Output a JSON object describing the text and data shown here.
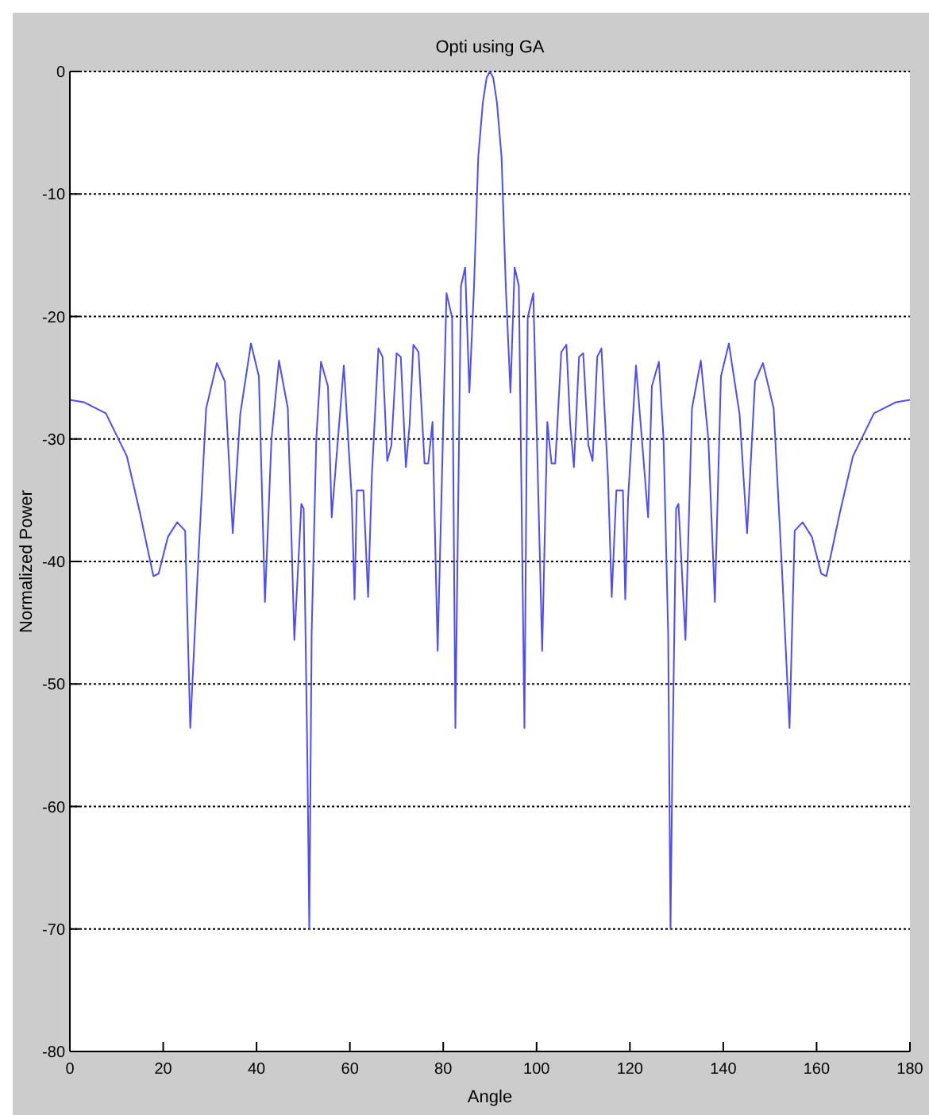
{
  "chart_data": {
    "type": "line",
    "title": "Opti using GA",
    "xlabel": "Angle",
    "ylabel": "Normalized Power",
    "xlim": [
      0,
      180
    ],
    "xticks": [
      0,
      20,
      40,
      60,
      80,
      100,
      120,
      140,
      160,
      180
    ],
    "ylim": [
      -80,
      0
    ],
    "yticks": [
      -80,
      -70,
      -60,
      -50,
      -40,
      -30,
      -20,
      -10,
      0
    ],
    "grid": "y",
    "marker": "none",
    "line_style": "solid",
    "series": [
      {
        "color": "#4d4dff",
        "x": [
          0,
          3,
          7.7,
          12.2,
          15,
          17.9,
          19,
          21,
          23,
          24.7,
          25.8,
          27.5,
          29.2,
          31.5,
          33.2,
          34.9,
          36.5,
          38.8,
          40.5,
          41.8,
          43.2,
          44.8,
          46.7,
          48.1,
          49.6,
          50.1,
          50.9,
          51.3,
          51.8,
          52.8,
          53.8,
          55.3,
          56.1,
          58.7,
          60.4,
          61,
          61.5,
          62.9,
          63.9,
          64.7,
          66.1,
          67,
          68,
          68.9,
          70,
          70.9,
          72,
          72.8,
          73.6,
          74.7,
          76,
          76.8,
          77.7,
          78.8,
          80.7,
          81.9,
          82.6,
          83.8,
          84.7,
          85.6,
          86.6,
          87.5,
          88.5,
          89.3,
          90,
          90.7,
          91.5,
          92.5,
          93.4,
          94.4,
          95.3,
          96.2,
          97.4,
          98.1,
          99.3,
          101.2,
          102.3,
          103.2,
          104,
          105.3,
          106.4,
          107.2,
          108,
          109.1,
          110,
          111.1,
          112,
          113,
          113.9,
          115.3,
          116.1,
          117.1,
          118.5,
          119,
          119.6,
          121.3,
          123.9,
          124.7,
          126.2,
          127.2,
          128.2,
          128.7,
          129.1,
          129.9,
          130.4,
          131.9,
          133.3,
          135.2,
          136.8,
          138.2,
          139.5,
          141.2,
          143.5,
          145.1,
          146.8,
          148.5,
          150.8,
          152.5,
          154.2,
          155.3,
          157,
          159,
          161,
          162.1,
          165,
          167.8,
          172.3,
          177,
          180
        ],
        "values": [
          -26.8,
          -27,
          -27.9,
          -31.4,
          -36,
          -41.2,
          -41,
          -38,
          -36.8,
          -37.5,
          -53.6,
          -40,
          -27.5,
          -23.8,
          -25.3,
          -37.7,
          -28,
          -22.2,
          -24.9,
          -43.3,
          -30,
          -23.6,
          -27.5,
          -46.4,
          -35.3,
          -35.7,
          -56.4,
          -70,
          -46,
          -30,
          -23.7,
          -25.7,
          -36.4,
          -24,
          -34.9,
          -43.1,
          -34.2,
          -34.2,
          -42.9,
          -33.1,
          -22.6,
          -23.3,
          -31.8,
          -30.5,
          -23,
          -23.3,
          -32.3,
          -28.8,
          -22.3,
          -22.9,
          -32,
          -32,
          -28.6,
          -47.3,
          -18.1,
          -20.1,
          -53.6,
          -17.5,
          -16,
          -26.2,
          -17.5,
          -7,
          -2.5,
          -0.5,
          0,
          -0.5,
          -2.5,
          -7,
          -17.5,
          -26.2,
          -16,
          -17.5,
          -53.6,
          -20.1,
          -18.1,
          -47.3,
          -28.6,
          -32,
          -32,
          -22.9,
          -22.3,
          -28.8,
          -32.3,
          -23.3,
          -23,
          -30.5,
          -31.8,
          -23.3,
          -22.6,
          -33.1,
          -42.9,
          -34.2,
          -34.2,
          -43.1,
          -34.9,
          -24,
          -36.4,
          -25.7,
          -23.7,
          -30,
          -46,
          -70,
          -56.4,
          -35.7,
          -35.3,
          -46.4,
          -27.5,
          -23.6,
          -30,
          -43.3,
          -24.9,
          -22.2,
          -28,
          -37.7,
          -25.3,
          -23.8,
          -27.5,
          -40,
          -53.6,
          -37.5,
          -36.8,
          -38,
          -41,
          -41.2,
          -36,
          -31.4,
          -27.9,
          -27,
          -26.8
        ]
      }
    ]
  }
}
